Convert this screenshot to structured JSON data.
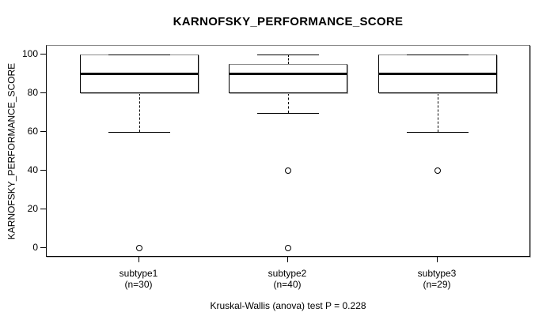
{
  "chart_data": {
    "type": "boxplot",
    "title": "KARNOFSKY_PERFORMANCE_SCORE",
    "ylabel": "KARNOFSKY_PERFORMANCE_SCORE",
    "footnote": "Kruskal-Wallis (anova) test P = 0.228",
    "test": "Kruskal-Wallis (anova)",
    "p_value": 0.228,
    "yticks": [
      0,
      20,
      40,
      60,
      80,
      100
    ],
    "ylim": [
      -5,
      105
    ],
    "grid": false,
    "legend": false,
    "groups": [
      {
        "label": "subtype1",
        "n_label": "(n=30)",
        "n": 30,
        "whisker_low": 60,
        "q1": 80,
        "median": 90,
        "q3": 100,
        "whisker_high": 100,
        "outliers": [
          0
        ]
      },
      {
        "label": "subtype2",
        "n_label": "(n=40)",
        "n": 40,
        "whisker_low": 70,
        "q1": 80,
        "median": 90,
        "q3": 95,
        "whisker_high": 100,
        "outliers": [
          40,
          0
        ]
      },
      {
        "label": "subtype3",
        "n_label": "(n=29)",
        "n": 29,
        "whisker_low": 60,
        "q1": 80,
        "median": 90,
        "q3": 100,
        "whisker_high": 100,
        "outliers": [
          40
        ]
      }
    ],
    "colors": {
      "line": "#000000",
      "box_fill": "#ffffff",
      "frame_top": "#8a8a8a",
      "shadow": "#b4b4b4",
      "text": "#000000",
      "background": "#ffffff"
    }
  }
}
